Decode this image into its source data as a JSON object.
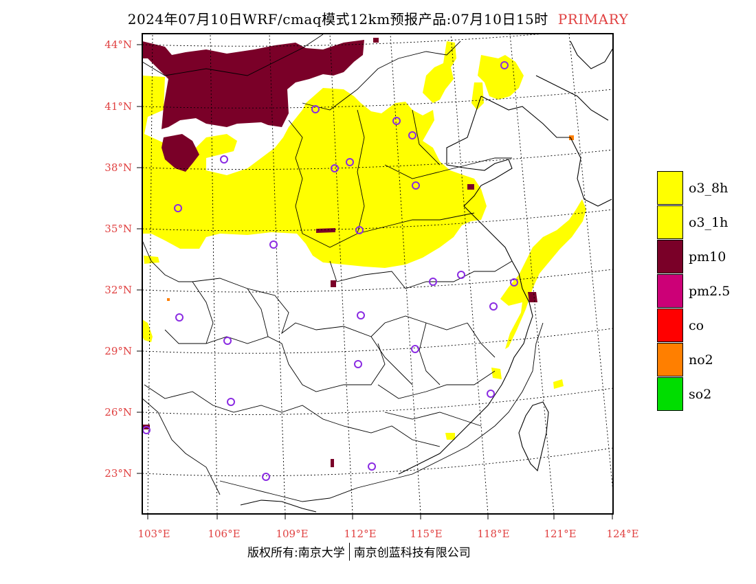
{
  "title": {
    "text": "2024年07月10日WRF/cmaq模式12km预报产品:07月10日15时",
    "tag": "PRIMARY",
    "tag_color": "#e04040"
  },
  "axes": {
    "label_color": "#e04040",
    "lat_labels": [
      "44°N",
      "41°N",
      "38°N",
      "35°N",
      "32°N",
      "29°N",
      "26°N",
      "23°N"
    ],
    "lon_labels": [
      "103°E",
      "106°E",
      "109°E",
      "112°E",
      "115°E",
      "118°E",
      "121°E",
      "124°E"
    ]
  },
  "legend": {
    "items": [
      {
        "label": "o3_8h",
        "color": "#ffff00"
      },
      {
        "label": "o3_1h",
        "color": "#ffff00"
      },
      {
        "label": "pm10",
        "color": "#7a0028"
      },
      {
        "label": "pm2.5",
        "color": "#cc0077"
      },
      {
        "label": "co",
        "color": "#ff0000"
      },
      {
        "label": "no2",
        "color": "#ff7f00"
      },
      {
        "label": "so2",
        "color": "#00dd00"
      }
    ]
  },
  "map": {
    "colors": {
      "o3": "#ffff00",
      "pm10": "#7a0028",
      "no2": "#ff7f00",
      "station": "#8a2be2",
      "border": "#000000",
      "grid": "#000000"
    }
  },
  "footer": {
    "left": "版权所有:南京大学",
    "right": "南京创蓝科技有限公司"
  }
}
